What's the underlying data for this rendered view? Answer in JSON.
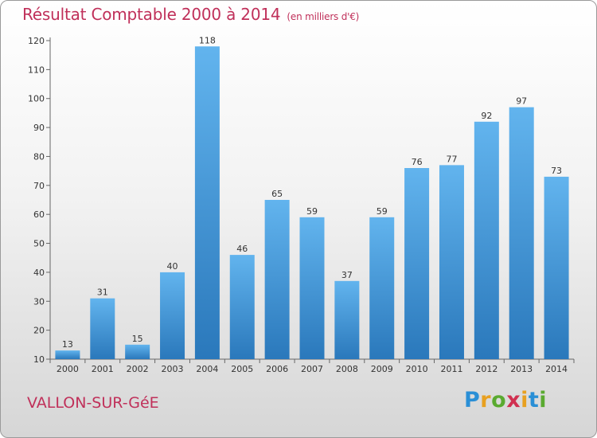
{
  "header": {
    "title": "Résultat Comptable 2000 à 2014",
    "unit": "(en milliers d'€)"
  },
  "footer": {
    "commune": "VALLON-SUR-GéE",
    "logo_letters": [
      "P",
      "r",
      "o",
      "x",
      "i",
      "t",
      "i"
    ],
    "logo_colors": [
      "#2a8fd6",
      "#e8a020",
      "#5aaa30",
      "#d03050",
      "#e8a020",
      "#2a8fd6",
      "#5aaa30"
    ]
  },
  "colors": {
    "bar_light": "#62b4ee",
    "bar_dark": "#2a78bb",
    "title": "#c0305a",
    "axis": "#666666"
  },
  "chart_data": {
    "type": "bar",
    "title": "Résultat Comptable 2000 à 2014",
    "ylabel": "",
    "xlabel": "",
    "categories": [
      "2000",
      "2001",
      "2002",
      "2003",
      "2004",
      "2005",
      "2006",
      "2007",
      "2008",
      "2009",
      "2010",
      "2011",
      "2012",
      "2013",
      "2014"
    ],
    "values": [
      13,
      31,
      15,
      40,
      118,
      46,
      65,
      59,
      37,
      59,
      76,
      77,
      92,
      97,
      73
    ],
    "yticks": [
      10,
      20,
      30,
      40,
      50,
      60,
      70,
      80,
      90,
      100,
      110,
      120
    ],
    "ylim": [
      10,
      120
    ],
    "grid": false,
    "legend": "none"
  }
}
